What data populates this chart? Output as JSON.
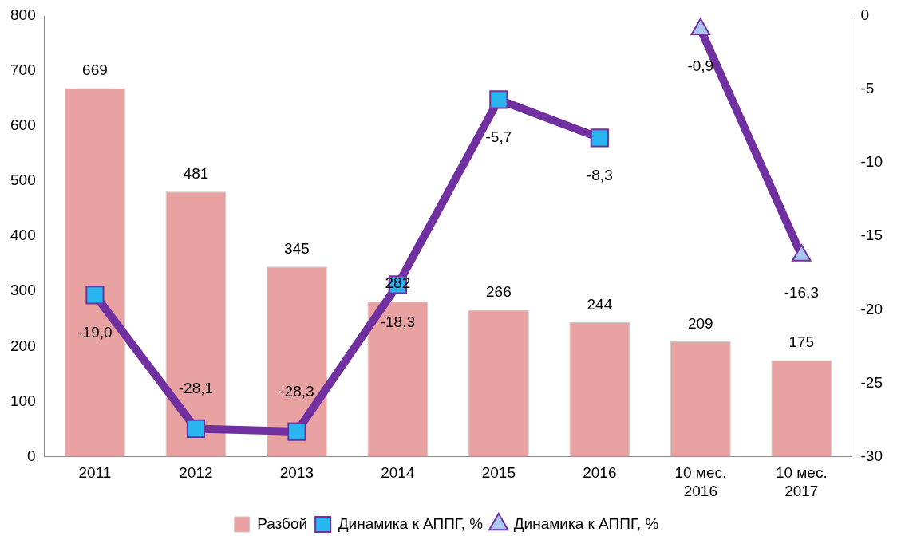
{
  "chart_data": {
    "type": "bar",
    "categories": [
      "2011",
      "2012",
      "2013",
      "2014",
      "2015",
      "2016",
      "10 мес. 2016",
      "10 мес. 2017"
    ],
    "series": [
      {
        "name": "Разбой",
        "color": "#e8a2a2",
        "values": [
          669,
          481,
          345,
          282,
          266,
          244,
          209,
          175
        ],
        "value_labels": [
          "669",
          "481",
          "345",
          "282",
          "266",
          "244",
          "209",
          "175"
        ]
      },
      {
        "name": "Динамика к АППГ, %",
        "type": "line",
        "axis": "y2",
        "color": "#7030a0",
        "marker": "square",
        "values": [
          -19.0,
          -28.1,
          -28.3,
          -18.3,
          -5.7,
          -8.3,
          null,
          null
        ],
        "value_labels": [
          "-19,0",
          "-28,1",
          "-28,3",
          "-18,3",
          "-5,7",
          "-8,3",
          null,
          null
        ]
      },
      {
        "name": "Динамика к АППГ, %",
        "type": "line",
        "axis": "y2",
        "color": "#7030a0",
        "marker": "triangle",
        "values": [
          null,
          null,
          null,
          null,
          null,
          null,
          -0.9,
          -16.3
        ],
        "value_labels": [
          null,
          null,
          null,
          null,
          null,
          null,
          "-0,9",
          "-16,3"
        ]
      }
    ],
    "ylim": [
      0,
      800
    ],
    "yticks": [
      0,
      100,
      200,
      300,
      400,
      500,
      600,
      700,
      800
    ],
    "y2lim": [
      -30,
      0
    ],
    "y2ticks": [
      -30,
      -25,
      -20,
      -15,
      -10,
      -5,
      0
    ],
    "grid": false,
    "legend": "bottom"
  }
}
